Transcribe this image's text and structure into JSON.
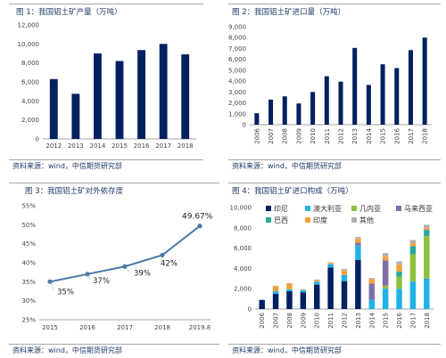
{
  "source_text": "资料来源：wind，中信期货研究部",
  "chart_data": [
    {
      "type": "bar",
      "title": "图 1：我国铝土矿产量（万吨）",
      "categories": [
        "2012",
        "2013",
        "2014",
        "2015",
        "2016",
        "2017",
        "2018"
      ],
      "values": [
        6300,
        4750,
        9000,
        8200,
        9350,
        10000,
        8900
      ],
      "ylim": [
        0,
        12000
      ],
      "yticks": [
        0,
        2000,
        4000,
        6000,
        8000,
        10000,
        12000
      ],
      "ytick_labels": [
        "0",
        "2,000",
        "4,000",
        "6,000",
        "8,000",
        "10,000",
        "12,000"
      ],
      "color": "#002060"
    },
    {
      "type": "bar",
      "title": "图 2：我国铝土矿进口量（万吨）",
      "categories": [
        "2006",
        "2007",
        "2008",
        "2009",
        "2010",
        "2011",
        "2012",
        "2013",
        "2014",
        "2015",
        "2016",
        "2017",
        "2018"
      ],
      "values": [
        1050,
        2300,
        2600,
        1950,
        3000,
        4450,
        3950,
        7050,
        3650,
        5550,
        5200,
        6850,
        8000
      ],
      "ylim": [
        0,
        9000
      ],
      "yticks": [
        0,
        1000,
        2000,
        3000,
        4000,
        5000,
        6000,
        7000,
        8000,
        9000
      ],
      "ytick_labels": [
        "0",
        "1,000",
        "2,000",
        "3,000",
        "4,000",
        "5,000",
        "6,000",
        "7,000",
        "8,000",
        "9,000"
      ],
      "color": "#002060"
    },
    {
      "type": "line",
      "title": "图 3：我国铝土矿对外依存度",
      "categories": [
        "2015",
        "2016",
        "2017",
        "2018",
        "2019.8"
      ],
      "values": [
        35,
        37,
        39,
        42,
        49.67
      ],
      "data_labels": [
        "35%",
        "37%",
        "39%",
        "42%",
        "49.67%"
      ],
      "ylim": [
        25,
        55
      ],
      "yticks": [
        25,
        30,
        35,
        40,
        45,
        50,
        55
      ],
      "ytick_labels": [
        "25%",
        "30%",
        "35%",
        "40%",
        "45%",
        "50%",
        "55%"
      ],
      "color": "#4a7ba6"
    },
    {
      "type": "bar",
      "stacked": true,
      "title": "图 4：我国铝土矿进口构成（万吨）",
      "categories": [
        "2006",
        "2007",
        "2008",
        "2009",
        "2010",
        "2011",
        "2012",
        "2013",
        "2014",
        "2015",
        "2016",
        "2017",
        "2018"
      ],
      "ylim": [
        0,
        10000
      ],
      "yticks": [
        0,
        2000,
        4000,
        6000,
        8000,
        10000
      ],
      "ytick_labels": [
        "0",
        "2,000",
        "4,000",
        "6,000",
        "8,000",
        "10,000"
      ],
      "legend": {
        "placement": "top-left",
        "columns": 4
      },
      "series": [
        {
          "name": "印尼",
          "color": "#002060",
          "values": [
            900,
            1500,
            1750,
            1650,
            2400,
            4100,
            2750,
            4850,
            0,
            0,
            0,
            0,
            0
          ]
        },
        {
          "name": "澳大利亚",
          "color": "#1fb2e6",
          "values": [
            0,
            250,
            200,
            200,
            300,
            300,
            600,
            1400,
            900,
            2000,
            2000,
            2700,
            3000
          ]
        },
        {
          "name": "几内亚",
          "color": "#8fbf3f",
          "values": [
            0,
            0,
            0,
            0,
            0,
            0,
            0,
            0,
            0,
            300,
            1200,
            2700,
            4200
          ]
        },
        {
          "name": "马来西亚",
          "color": "#7f6fa8",
          "values": [
            0,
            0,
            0,
            0,
            0,
            0,
            0,
            300,
            1600,
            2500,
            0,
            0,
            0
          ]
        },
        {
          "name": "巴西",
          "color": "#2ea89c",
          "values": [
            0,
            0,
            0,
            0,
            0,
            0,
            0,
            0,
            0,
            0,
            500,
            800,
            600
          ]
        },
        {
          "name": "印度",
          "color": "#f3a23a",
          "values": [
            0,
            500,
            550,
            50,
            150,
            150,
            450,
            400,
            450,
            400,
            700,
            300,
            200
          ]
        },
        {
          "name": "其他",
          "color": "#b0b0b0",
          "values": [
            0,
            50,
            50,
            50,
            50,
            50,
            150,
            150,
            100,
            300,
            300,
            300,
            300
          ]
        }
      ]
    }
  ]
}
